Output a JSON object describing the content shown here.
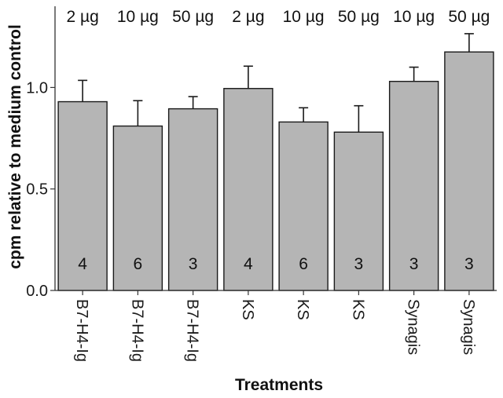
{
  "chart_data": {
    "type": "bar",
    "categories": [
      "B7-H4-Ig",
      "B7-H4-Ig",
      "B7-H4-Ig",
      "KS",
      "KS",
      "KS",
      "Synagis",
      "Synagis"
    ],
    "doses": [
      "2 µg",
      "10 µg",
      "50 µg",
      "2 µg",
      "10 µg",
      "50 µg",
      "10 µg",
      "50 µg"
    ],
    "values": [
      0.93,
      0.81,
      0.895,
      0.995,
      0.83,
      0.78,
      1.03,
      1.175
    ],
    "errors": [
      0.105,
      0.125,
      0.06,
      0.11,
      0.07,
      0.13,
      0.07,
      0.09
    ],
    "n": [
      "4",
      "6",
      "3",
      "4",
      "6",
      "3",
      "3",
      "3"
    ],
    "xlabel": "Treatments",
    "ylabel": "cpm relative to medium control",
    "ylim": [
      0,
      1.4
    ],
    "yticks": [
      0.0,
      0.5,
      1.0
    ],
    "ytick_labels": [
      "0.0",
      "0.5",
      "1.0"
    ],
    "grid": false,
    "colors": {
      "bar_fill": "#b5b5b5",
      "bar_stroke": "#1a1a1a",
      "axis": "#333333"
    }
  }
}
